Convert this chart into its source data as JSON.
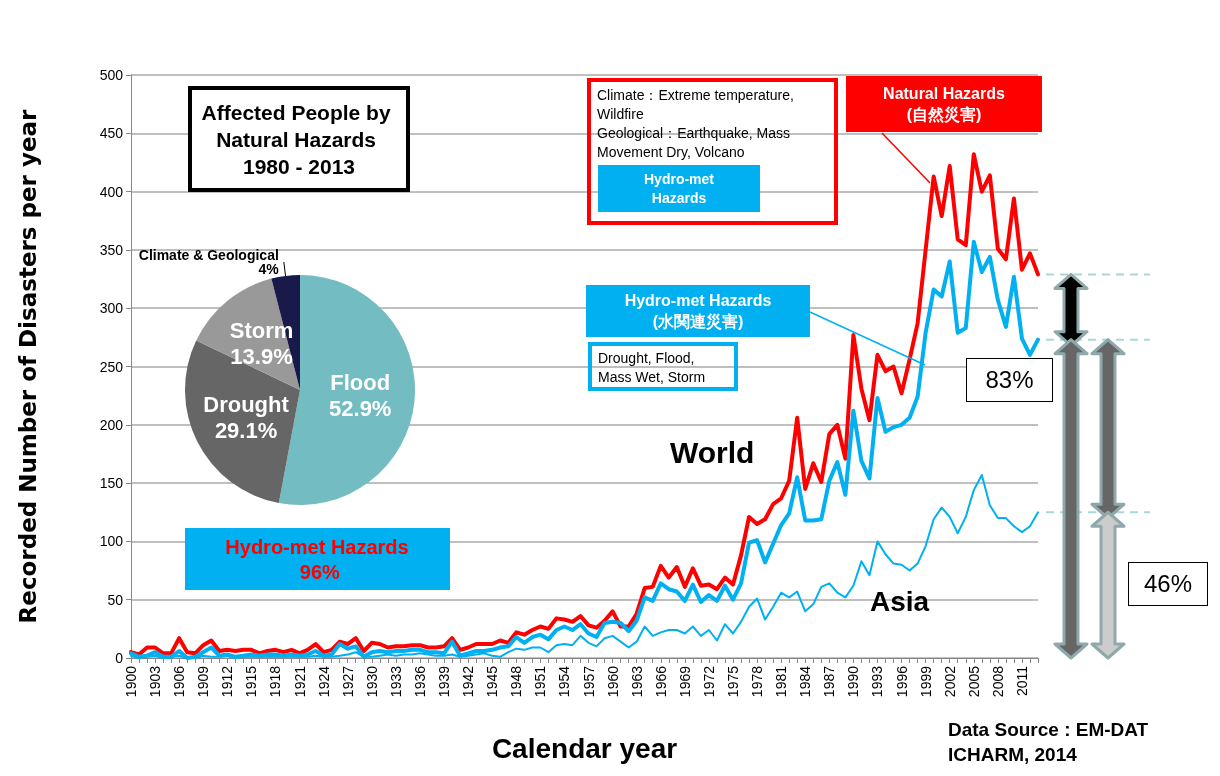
{
  "chart_data": [
    {
      "type": "line",
      "xlabel": "Calendar year",
      "ylabel": "Recorded Number of Disasters per year",
      "categories": [
        "1900",
        null,
        null,
        "1903",
        null,
        null,
        "1906",
        null,
        null,
        "1909",
        null,
        null,
        "1912",
        null,
        null,
        "1915",
        null,
        null,
        "1918",
        null,
        null,
        "1921",
        null,
        null,
        "1924",
        null,
        null,
        "1927",
        null,
        null,
        "1930",
        null,
        null,
        "1933",
        null,
        null,
        "1936",
        null,
        null,
        "1939",
        null,
        null,
        "1942",
        null,
        null,
        "1945",
        null,
        null,
        "1948",
        null,
        null,
        "1951",
        null,
        null,
        "1954",
        null,
        null,
        "1957",
        null,
        null,
        "1960",
        null,
        null,
        "1963",
        null,
        null,
        "1966",
        null,
        null,
        "1969",
        null,
        null,
        "1972",
        null,
        null,
        "1975",
        null,
        null,
        "1978",
        null,
        null,
        "1981",
        null,
        null,
        "1984",
        null,
        null,
        "1987",
        null,
        null,
        "1990",
        null,
        null,
        "1993",
        null,
        null,
        "1996",
        null,
        null,
        "1999",
        null,
        null,
        "2002",
        null,
        null,
        "2005",
        null,
        null,
        "2008",
        null,
        null,
        "2011",
        null,
        null
      ],
      "series": [
        {
          "name": "Natural Hazards (自然災害)",
          "color": "#ff0000",
          "values": [
            5,
            3,
            9,
            9,
            4,
            4,
            17,
            5,
            4,
            11,
            15,
            6,
            7,
            6,
            7,
            7,
            4,
            6,
            7,
            5,
            7,
            4,
            7,
            12,
            5,
            7,
            14,
            12,
            17,
            6,
            13,
            12,
            9,
            10,
            10,
            11,
            11,
            9,
            9,
            10,
            17,
            7,
            9,
            12,
            12,
            12,
            15,
            13,
            22,
            20,
            24,
            27,
            25,
            34,
            33,
            31,
            36,
            28,
            26,
            32,
            40,
            27,
            27,
            38,
            60,
            61,
            79,
            69,
            78,
            61,
            77,
            62,
            63,
            59,
            69,
            63,
            88,
            121,
            115,
            119,
            132,
            137,
            152,
            206,
            145,
            167,
            151,
            192,
            200,
            171,
            277,
            231,
            204,
            260,
            246,
            250,
            227,
            256,
            287,
            350,
            413,
            379,
            422,
            359,
            354,
            432,
            400,
            414,
            351,
            342,
            394,
            333,
            347,
            329
          ]
        },
        {
          "name": "Hydro-met Hazards (水関連災害)",
          "color": "#00b0f0",
          "values": [
            4,
            1,
            2,
            5,
            1,
            1,
            6,
            0,
            1,
            5,
            9,
            2,
            3,
            1,
            2,
            3,
            2,
            3,
            3,
            2,
            3,
            2,
            3,
            6,
            2,
            3,
            12,
            8,
            10,
            1,
            5,
            6,
            5,
            6,
            6,
            7,
            7,
            5,
            5,
            4,
            14,
            2,
            4,
            6,
            6,
            7,
            9,
            10,
            18,
            13,
            18,
            20,
            16,
            24,
            27,
            24,
            29,
            21,
            18,
            30,
            31,
            30,
            23,
            32,
            52,
            49,
            64,
            59,
            57,
            49,
            63,
            48,
            54,
            49,
            62,
            50,
            64,
            99,
            101,
            82,
            98,
            114,
            124,
            155,
            118,
            118,
            119,
            152,
            168,
            140,
            212,
            169,
            154,
            223,
            194,
            198,
            200,
            206,
            224,
            279,
            316,
            310,
            340,
            279,
            283,
            357,
            331,
            344,
            307,
            284,
            327,
            274,
            260,
            273
          ]
        },
        {
          "name": "Asia",
          "color": "#00b0f0",
          "values": [
            2,
            0,
            1,
            2,
            0,
            1,
            2,
            0,
            0,
            2,
            1,
            1,
            2,
            0,
            1,
            1,
            1,
            1,
            1,
            1,
            1,
            1,
            1,
            2,
            1,
            1,
            2,
            3,
            5,
            1,
            1,
            2,
            3,
            2,
            3,
            3,
            4,
            3,
            2,
            2,
            3,
            1,
            2,
            3,
            4,
            2,
            1,
            5,
            8,
            7,
            9,
            9,
            5,
            11,
            12,
            11,
            19,
            13,
            10,
            17,
            19,
            14,
            9,
            14,
            27,
            19,
            22,
            24,
            24,
            21,
            27,
            19,
            24,
            15,
            29,
            21,
            31,
            44,
            51,
            33,
            44,
            56,
            52,
            57,
            40,
            46,
            61,
            64,
            56,
            52,
            62,
            83,
            71,
            100,
            89,
            81,
            80,
            75,
            81,
            96,
            119,
            129,
            121,
            107,
            121,
            144,
            157,
            131,
            120,
            120,
            113,
            108,
            113,
            125
          ]
        }
      ],
      "ylim": [
        0,
        500
      ],
      "yticks": [
        0,
        50,
        100,
        150,
        200,
        250,
        300,
        350,
        400,
        450,
        500
      ],
      "grid": "y",
      "marker": "none",
      "line_style": "solid",
      "annotations": [
        "Climate：Extreme temperature, Wildfire\nGeological：Earthquake, Mass Movement Dry, Volcano",
        "Hydro-met Hazards",
        "Drought, Flood, Mass Wet, Storm",
        "World",
        "83%",
        "46%",
        "Data Source : EM-DAT",
        "ICHARM, 2014"
      ]
    },
    {
      "type": "pie",
      "title": "Affected People by Natural Hazards 1980 - 2013",
      "categories": [
        "Flood",
        "Drought",
        "Storm",
        "Climate & Geological"
      ],
      "values": [
        52.9,
        29.1,
        13.9,
        4
      ],
      "colors": [
        "#72bcc2",
        "#666666",
        "#999999",
        "#1a1a4a"
      ],
      "value_labels": [
        "52.9%",
        "29.1%",
        "13.9%",
        "4%"
      ],
      "annotations": [
        "Hydro-met Hazards 96%"
      ]
    }
  ]
}
